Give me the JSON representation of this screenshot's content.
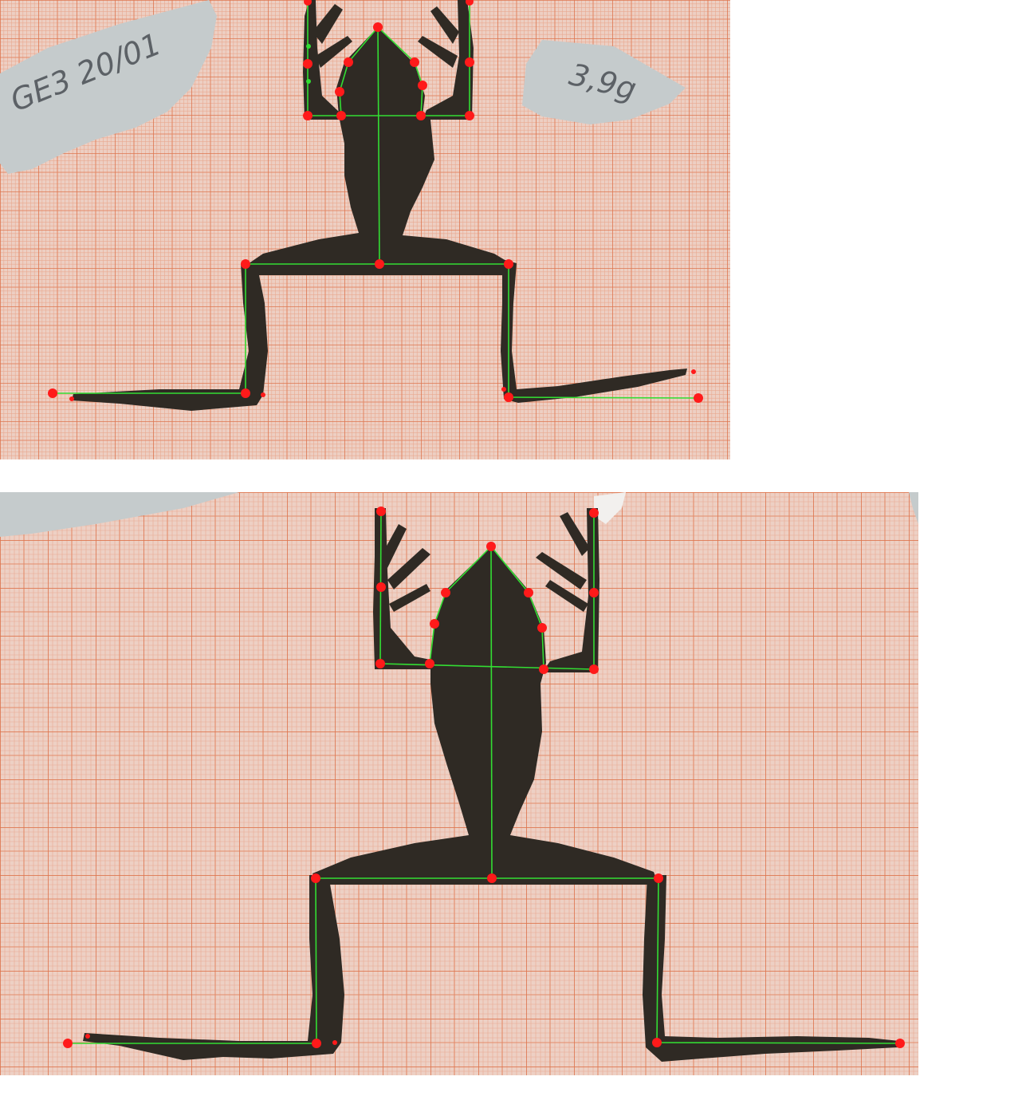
{
  "colors": {
    "paper": "#ecc9bd",
    "grid_minor": "#e9a48a",
    "grid_major": "#e07a55",
    "frog_body": "#2e2a24",
    "tag_paper": "#c4cacb",
    "landmark": "#ff1a1a",
    "measure_line": "#33dd33"
  },
  "top_panel": {
    "label_left": "GE3  20/01",
    "label_right": "3,9g"
  },
  "bottom_panel": {}
}
